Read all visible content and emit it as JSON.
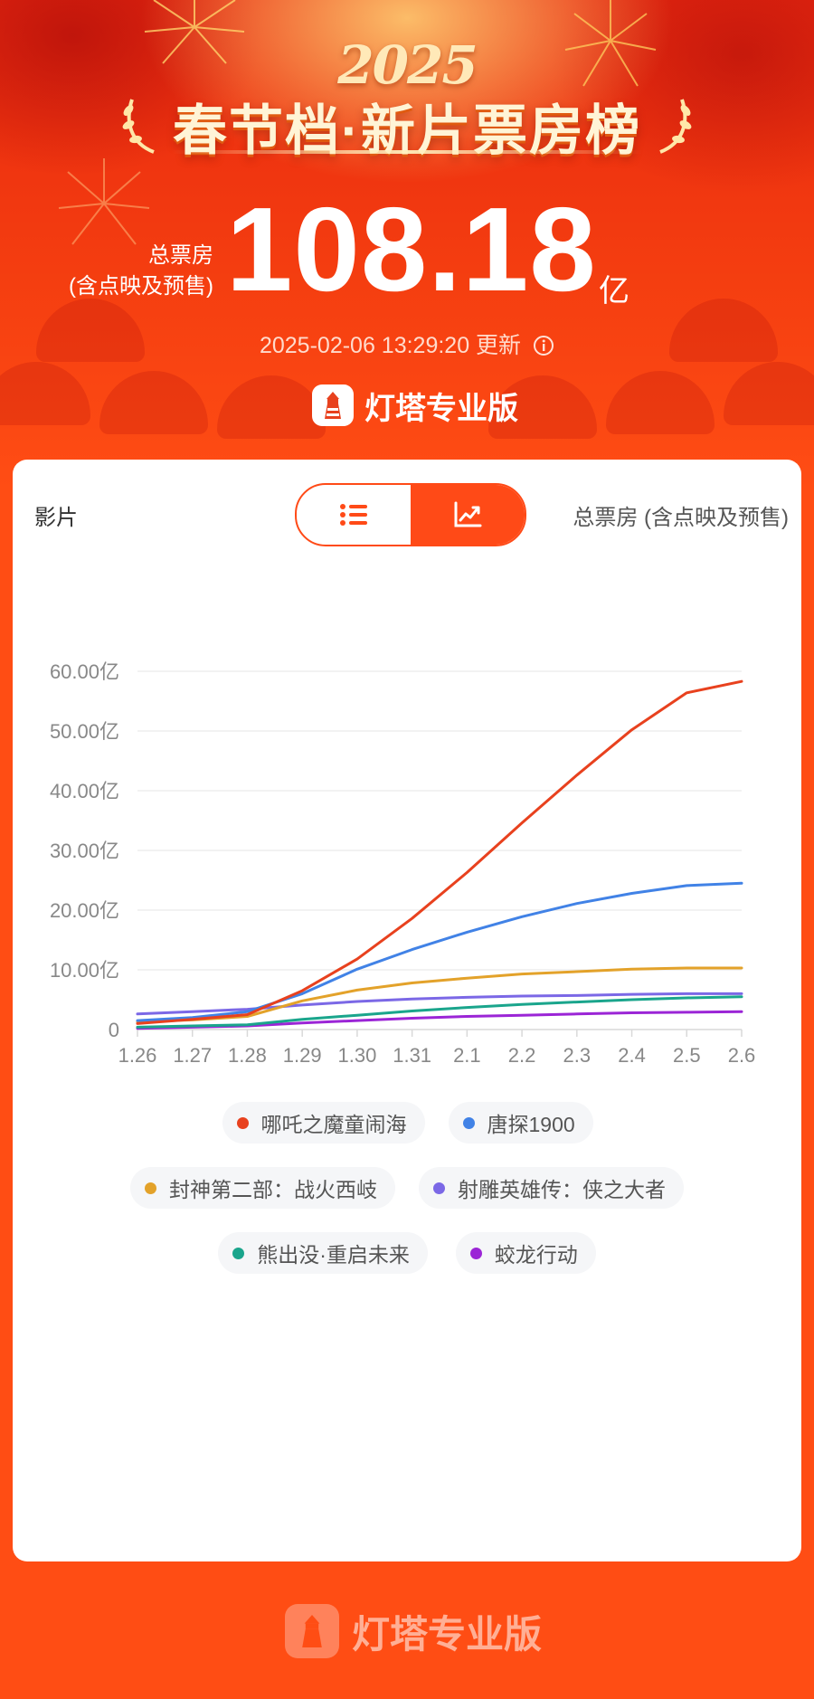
{
  "header": {
    "year": "2025",
    "title": "春节档·新片票房榜",
    "total_label_line1": "总票房",
    "total_label_line2": "(含点映及预售)",
    "total_value": "108.18",
    "total_unit": "亿",
    "update_text": "2025-02-06 13:29:20 更新",
    "brand_name": "灯塔专业版"
  },
  "table_header": {
    "left": "影片",
    "right": "总票房 (含点映及预售)",
    "toggle_list_icon": "list-icon",
    "toggle_chart_icon": "trend-chart-icon",
    "active_view": "chart"
  },
  "chart_data": {
    "type": "line",
    "x": [
      "1.26",
      "1.27",
      "1.28",
      "1.29",
      "1.30",
      "1.31",
      "2.1",
      "2.2",
      "2.3",
      "2.4",
      "2.5",
      "2.6"
    ],
    "y_ticks": [
      "0",
      "10.00亿",
      "20.00亿",
      "30.00亿",
      "40.00亿",
      "50.00亿",
      "60.00亿"
    ],
    "ylim": [
      0,
      60
    ],
    "grid": true,
    "legend_placement": "bottom",
    "series": [
      {
        "name": "哪吒之魔童闹海",
        "color": "#e8411e",
        "values": [
          1.0,
          1.7,
          2.5,
          6.5,
          11.8,
          18.6,
          26.3,
          34.6,
          42.6,
          50.2,
          56.4,
          58.3
        ]
      },
      {
        "name": "唐探1900",
        "color": "#4182e6",
        "values": [
          1.5,
          2.0,
          3.0,
          6.0,
          10.1,
          13.4,
          16.3,
          18.9,
          21.1,
          22.8,
          24.1,
          24.5
        ]
      },
      {
        "name": "封神第二部：战火西岐",
        "color": "#e3a22a",
        "values": [
          1.3,
          1.6,
          2.2,
          4.8,
          6.6,
          7.8,
          8.6,
          9.3,
          9.7,
          10.1,
          10.3,
          10.3
        ]
      },
      {
        "name": "射雕英雄传：侠之大者",
        "color": "#7b68e6",
        "values": [
          2.6,
          3.0,
          3.4,
          4.1,
          4.7,
          5.1,
          5.4,
          5.6,
          5.7,
          5.9,
          6.0,
          6.0
        ]
      },
      {
        "name": "熊出没·重启未来",
        "color": "#1aa58c",
        "values": [
          0.4,
          0.6,
          0.8,
          1.7,
          2.4,
          3.1,
          3.7,
          4.2,
          4.6,
          5.0,
          5.3,
          5.5
        ]
      },
      {
        "name": "蛟龙行动",
        "color": "#9b25d6",
        "values": [
          0.2,
          0.4,
          0.6,
          1.1,
          1.5,
          1.9,
          2.2,
          2.4,
          2.6,
          2.8,
          2.9,
          3.0
        ]
      }
    ]
  },
  "footer": {
    "brand_name": "灯塔专业版"
  }
}
